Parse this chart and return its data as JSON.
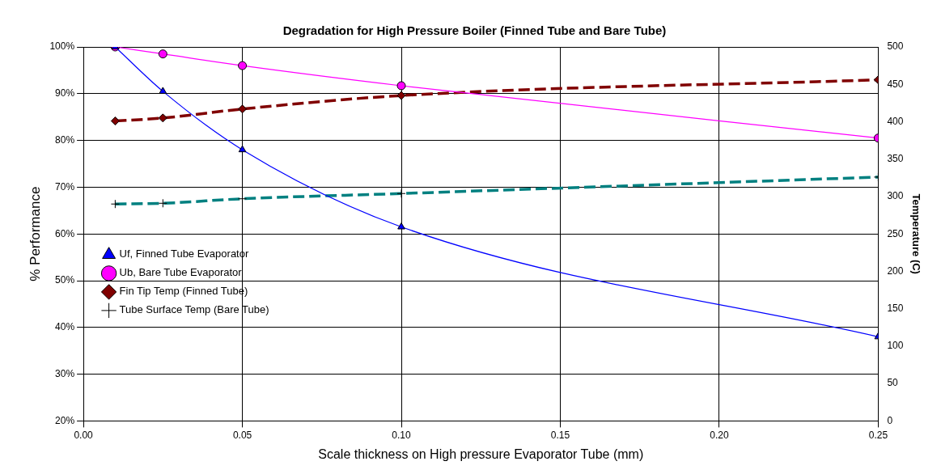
{
  "chart_data": {
    "type": "line",
    "title": "Degradation for High Pressure Boiler (Finned Tube and Bare Tube)",
    "xlabel": "Scale thickness on High pressure Evaporator Tube (mm)",
    "ylabel": "% Performance",
    "y2label": "Temperature (C)",
    "x": [
      0.01,
      0.025,
      0.05,
      0.1,
      0.25
    ],
    "series": [
      {
        "name": "Uf, Finned Tube Evaporator",
        "color": "#0000ff",
        "values": [
          100,
          90.5,
          78,
          61.5,
          38
        ],
        "marker": "triangle",
        "line_style": "solid"
      },
      {
        "name": "Ub, Bare Tube Evaporator",
        "color": "#ff00ff",
        "values": [
          100,
          98.5,
          96,
          91.7,
          80.5
        ],
        "marker": "circle",
        "line_style": "solid"
      },
      {
        "name": "Fin Tip Temp (Finned Tube)",
        "color": "#800000",
        "values": [
          401,
          405,
          417,
          435,
          456
        ],
        "marker": "diamond",
        "line_style": "dashed",
        "axis": "y2"
      },
      {
        "name": "Tube Surface Temp (Bare Tube)",
        "color": "#008080",
        "values": [
          290,
          291,
          297,
          304,
          326
        ],
        "marker": "cross",
        "line_style": "dashed",
        "axis": "y2"
      }
    ],
    "xlim": [
      0,
      0.25
    ],
    "xticks": [
      {
        "value": 0,
        "label": "0.00"
      },
      {
        "value": 0.05,
        "label": "0.05"
      },
      {
        "value": 0.1,
        "label": "0.10"
      },
      {
        "value": 0.15,
        "label": "0.15"
      },
      {
        "value": 0.2,
        "label": "0.20"
      },
      {
        "value": 0.25,
        "label": "0.25"
      }
    ],
    "ylim": [
      20,
      100
    ],
    "yticks": [
      {
        "value": 20,
        "label": "20%"
      },
      {
        "value": 30,
        "label": "30%"
      },
      {
        "value": 40,
        "label": "40%"
      },
      {
        "value": 50,
        "label": "50%"
      },
      {
        "value": 60,
        "label": "60%"
      },
      {
        "value": 70,
        "label": "70%"
      },
      {
        "value": 80,
        "label": "80%"
      },
      {
        "value": 90,
        "label": "90%"
      },
      {
        "value": 100,
        "label": "100%"
      }
    ],
    "y2lim": [
      0,
      500
    ],
    "y2ticks": [
      0,
      50,
      100,
      150,
      200,
      250,
      300,
      350,
      400,
      450,
      500
    ],
    "grid": true,
    "legend": "bottom left"
  }
}
